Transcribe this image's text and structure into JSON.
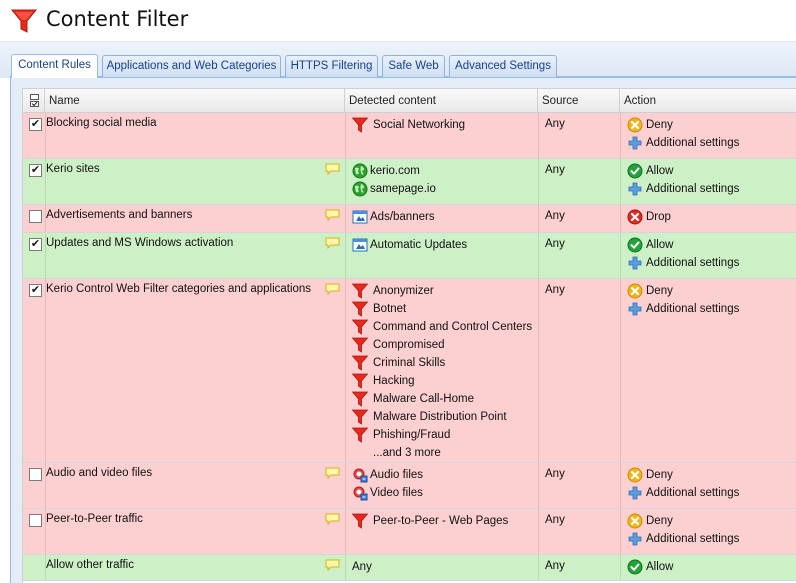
{
  "window": {
    "title": "Content Filter"
  },
  "tabs": [
    {
      "label": "Content Rules",
      "active": true
    },
    {
      "label": "Applications and Web Categories",
      "active": false
    },
    {
      "label": "HTTPS Filtering",
      "active": false
    },
    {
      "label": "Safe Web",
      "active": false
    },
    {
      "label": "Advanced Settings",
      "active": false
    }
  ],
  "columns": {
    "name": "Name",
    "detected": "Detected content",
    "source": "Source",
    "action": "Action"
  },
  "colors": {
    "deny_row": "#fccfd1",
    "allow_row": "#cdf0c7",
    "tab_text": "#15428b"
  },
  "rules": [
    {
      "name": "Blocking social media",
      "enabled": true,
      "comment_icon": false,
      "row_status": "deny",
      "detected": [
        {
          "icon": "funnel-icon",
          "label": "Social Networking"
        }
      ],
      "source": "Any",
      "actions": [
        {
          "icon": "deny-icon",
          "label": "Deny"
        },
        {
          "icon": "plus-icon",
          "label": "Additional settings"
        }
      ]
    },
    {
      "name": "Kerio sites",
      "enabled": true,
      "comment_icon": true,
      "row_status": "allow",
      "detected": [
        {
          "icon": "globe-icon",
          "label": "kerio.com"
        },
        {
          "icon": "globe-icon",
          "label": "samepage.io"
        }
      ],
      "source": "Any",
      "actions": [
        {
          "icon": "allow-icon",
          "label": "Allow"
        },
        {
          "icon": "plus-icon",
          "label": "Additional settings"
        }
      ]
    },
    {
      "name": "Advertisements and banners",
      "enabled": false,
      "comment_icon": true,
      "row_status": "deny",
      "detected": [
        {
          "icon": "url-group-icon",
          "label": "Ads/banners"
        }
      ],
      "source": "Any",
      "actions": [
        {
          "icon": "drop-icon",
          "label": "Drop"
        }
      ]
    },
    {
      "name": "Updates and MS Windows activation",
      "enabled": true,
      "comment_icon": true,
      "row_status": "allow",
      "detected": [
        {
          "icon": "url-group-icon",
          "label": "Automatic Updates"
        }
      ],
      "source": "Any",
      "actions": [
        {
          "icon": "allow-icon",
          "label": "Allow"
        },
        {
          "icon": "plus-icon",
          "label": "Additional settings"
        }
      ]
    },
    {
      "name": "Kerio Control Web Filter categories and applications",
      "enabled": true,
      "comment_icon": true,
      "row_status": "deny",
      "detected": [
        {
          "icon": "funnel-icon",
          "label": "Anonymizer"
        },
        {
          "icon": "funnel-icon",
          "label": "Botnet"
        },
        {
          "icon": "funnel-icon",
          "label": "Command and Control Centers"
        },
        {
          "icon": "funnel-icon",
          "label": "Compromised"
        },
        {
          "icon": "funnel-icon",
          "label": "Criminal Skills"
        },
        {
          "icon": "funnel-icon",
          "label": "Hacking"
        },
        {
          "icon": "funnel-icon",
          "label": "Malware Call-Home"
        },
        {
          "icon": "funnel-icon",
          "label": "Malware Distribution Point"
        },
        {
          "icon": "funnel-icon",
          "label": "Phishing/Fraud"
        }
      ],
      "more": "...and 3 more",
      "source": "Any",
      "actions": [
        {
          "icon": "deny-icon",
          "label": "Deny"
        },
        {
          "icon": "plus-icon",
          "label": "Additional settings"
        }
      ]
    },
    {
      "name": "Audio and video files",
      "enabled": false,
      "comment_icon": true,
      "row_status": "deny",
      "detected": [
        {
          "icon": "file-name-icon",
          "label": "Audio files"
        },
        {
          "icon": "file-name-icon",
          "label": "Video files"
        }
      ],
      "source": "Any",
      "actions": [
        {
          "icon": "deny-icon",
          "label": "Deny"
        },
        {
          "icon": "plus-icon",
          "label": "Additional settings"
        }
      ]
    },
    {
      "name": "Peer-to-Peer traffic",
      "enabled": false,
      "comment_icon": true,
      "row_status": "deny",
      "detected": [
        {
          "icon": "funnel-icon",
          "label": "Peer-to-Peer - Web Pages"
        }
      ],
      "source": "Any",
      "actions": [
        {
          "icon": "deny-icon",
          "label": "Deny"
        },
        {
          "icon": "plus-icon",
          "label": "Additional settings"
        }
      ]
    },
    {
      "name": "Allow other traffic",
      "enabled": null,
      "comment_icon": true,
      "row_status": "allow",
      "detected": [
        {
          "icon": "",
          "label": "Any"
        }
      ],
      "source": "Any",
      "actions": [
        {
          "icon": "allow-icon",
          "label": "Allow"
        }
      ]
    }
  ]
}
